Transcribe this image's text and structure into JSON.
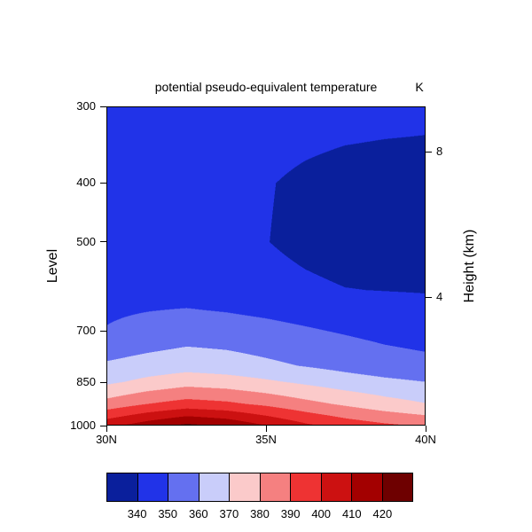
{
  "title": "potential pseudo-equivalent temperature",
  "units_label": "K",
  "axes": {
    "y_left": {
      "label": "Level",
      "ticks": [
        300,
        400,
        500,
        700,
        850,
        1000
      ],
      "scale": "log-inverted"
    },
    "y_right": {
      "label": "Height (km)",
      "ticks": [
        {
          "label": "8",
          "pressure": 356
        },
        {
          "label": "4",
          "pressure": 616
        }
      ]
    },
    "x": {
      "ticks": [
        {
          "label": "30N",
          "value": 30
        },
        {
          "label": "35N",
          "value": 35
        },
        {
          "label": "40N",
          "value": 40
        }
      ],
      "min": 30,
      "max": 40
    }
  },
  "colorbar": {
    "labels": [
      "340",
      "350",
      "360",
      "370",
      "380",
      "390",
      "400",
      "410",
      "420"
    ]
  },
  "chart_data": {
    "type": "heatmap",
    "subtype": "filled_contour_cross_section",
    "title": "potential pseudo-equivalent temperature",
    "units": "K",
    "x_name": "latitude_degN",
    "x": [
      30,
      31.25,
      32.5,
      33.75,
      35,
      36.25,
      37.5,
      38.75,
      40
    ],
    "y_name": "pressure_level_hPa",
    "y": [
      300,
      400,
      500,
      600,
      700,
      800,
      850,
      925,
      1000
    ],
    "y_scale": "log-inverted",
    "values_K": [
      [
        345,
        345,
        345,
        344.5,
        344,
        343.5,
        343,
        342.5,
        342
      ],
      [
        344,
        343.5,
        343,
        342,
        340.5,
        338.5,
        337,
        336.5,
        336.5
      ],
      [
        344,
        343.5,
        343,
        341.5,
        340.2,
        338,
        336.5,
        336.8,
        337.5
      ],
      [
        347,
        346.5,
        346,
        344.5,
        343,
        341.5,
        340.2,
        339.8,
        339.5
      ],
      [
        350.5,
        353,
        355,
        354.5,
        353,
        351,
        349,
        347,
        345.5
      ],
      [
        361.5,
        364,
        366,
        364.5,
        362,
        359.5,
        357,
        354.5,
        353
      ],
      [
        368,
        372.5,
        376,
        374.5,
        371.5,
        368,
        364.5,
        362,
        360
      ],
      [
        384,
        390,
        394,
        392,
        388,
        383,
        378.5,
        374,
        370.5
      ],
      [
        406,
        414,
        421,
        417,
        409,
        401,
        395,
        391,
        388
      ]
    ],
    "contour_levels": [
      340,
      350,
      360,
      370,
      380,
      390,
      400,
      410,
      420
    ],
    "band_colors": [
      "#0a1f9c",
      "#2133e8",
      "#6470f0",
      "#c9cdfa",
      "#fbcaca",
      "#f58080",
      "#ee3333",
      "#cc1111",
      "#a30000",
      "#6e0000"
    ]
  }
}
